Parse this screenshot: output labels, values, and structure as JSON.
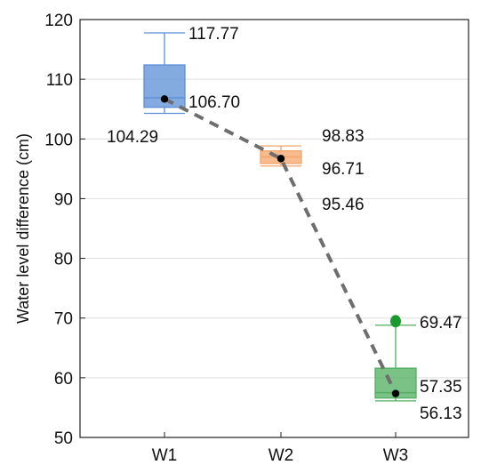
{
  "chart_data": {
    "type": "box",
    "categories": [
      "W1",
      "W2",
      "W3"
    ],
    "ylabel": "Water level difference (cm)",
    "xlabel": "",
    "title": "",
    "ylim": [
      50,
      120
    ],
    "yticks": [
      "50",
      "60",
      "70",
      "80",
      "90",
      "100",
      "110",
      "120"
    ],
    "grid": true,
    "boxes": [
      {
        "category": "W1",
        "color": "#5b8fd6",
        "whisker_low": 104.29,
        "q1": 105.3,
        "median": 106.9,
        "q3": 112.4,
        "whisker_high": 117.77,
        "mean": 106.7,
        "outliers": [],
        "labels": [
          {
            "text": "117.77",
            "y": 117.77
          },
          {
            "text": "106.70",
            "y": 106.7
          },
          {
            "text": "104.29",
            "y": 104.29
          }
        ]
      },
      {
        "category": "W2",
        "color": "#f4a46a",
        "whisker_low": 95.46,
        "q1": 95.9,
        "median": 97.0,
        "q3": 98.0,
        "whisker_high": 98.83,
        "mean": 96.71,
        "outliers": [],
        "labels": [
          {
            "text": "98.83",
            "y": 98.83
          },
          {
            "text": "96.71",
            "y": 96.71
          },
          {
            "text": "95.46",
            "y": 95.46
          }
        ]
      },
      {
        "category": "W3",
        "color": "#4fae5f",
        "whisker_low": 56.13,
        "q1": 56.6,
        "median": 57.5,
        "q3": 61.6,
        "whisker_high": 68.8,
        "mean": 57.35,
        "outliers": [
          69.47
        ],
        "labels": [
          {
            "text": "69.47",
            "y": 69.47
          },
          {
            "text": "57.35",
            "y": 57.35
          },
          {
            "text": "56.13",
            "y": 56.13
          }
        ]
      }
    ],
    "mean_line": {
      "style": "dashed",
      "color": "#6e6e6e"
    }
  }
}
